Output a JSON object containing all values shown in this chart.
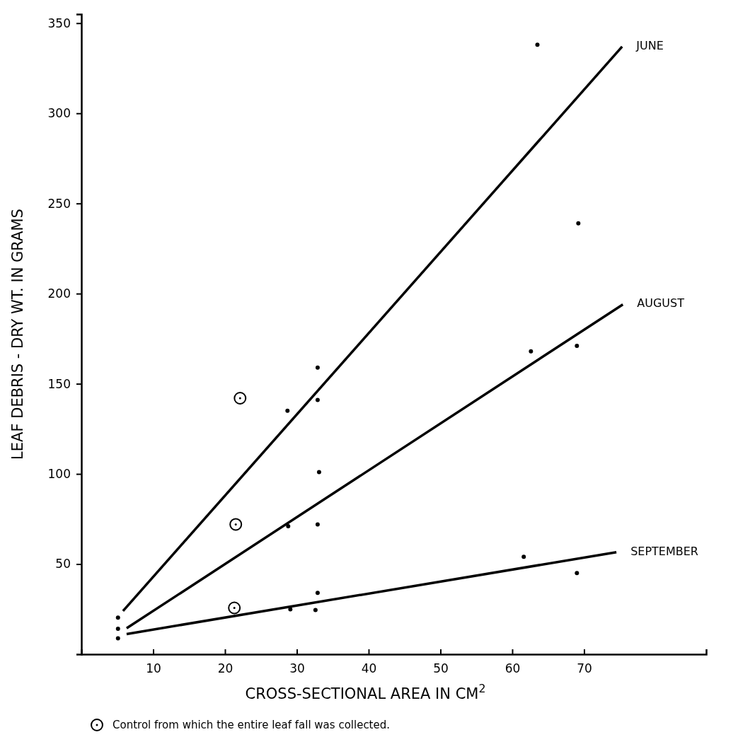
{
  "chart_data": {
    "type": "scatter",
    "xlabel": "CROSS-SECTIONAL AREA IN CM$^{2}$",
    "ylabel": "LEAF DEBRIS - DRY WT. IN GRAMS",
    "xlim": [
      0,
      87
    ],
    "xticks": [
      10,
      20,
      30,
      40,
      50,
      60,
      70
    ],
    "ylim": [
      0,
      355
    ],
    "yticks": [
      50,
      100,
      150,
      200,
      250,
      300,
      350
    ],
    "grid": false,
    "legend": "bottom left",
    "series": [
      {
        "type": "line",
        "name": "JUNE",
        "color": "#000000",
        "marker": "none",
        "x": [
          5.8,
          75.3
        ],
        "values": [
          24,
          337
        ]
      },
      {
        "type": "line",
        "name": "AUGUST",
        "color": "#000000",
        "marker": "none",
        "x": [
          6.3,
          75.4
        ],
        "values": [
          14.4,
          194
        ]
      },
      {
        "type": "line",
        "name": "SEPTEMBER",
        "color": "#000000",
        "marker": "none",
        "x": [
          6.3,
          74.5
        ],
        "values": [
          11.2,
          56.6
        ]
      },
      {
        "color": "#000000",
        "marker": "circle",
        "x": [
          5.1,
          5.1,
          5.1,
          28.7,
          28.8,
          29.1,
          32.9,
          32.9,
          33.1,
          32.9,
          32.9,
          32.6,
          62.6,
          61.6,
          63.5,
          69.2,
          69,
          69
        ],
        "values": [
          20.3,
          14.1,
          8.8,
          135,
          71,
          24.9,
          159,
          141,
          101,
          72,
          34,
          24.5,
          168,
          54,
          338,
          239,
          171,
          45
        ]
      },
      {
        "name": "Control from which the entire leaf fall was collected.",
        "color": "#000000",
        "marker": "circle",
        "x": [
          22.1,
          21.5,
          21.3
        ],
        "values": [
          142,
          72,
          25.7
        ]
      }
    ]
  }
}
